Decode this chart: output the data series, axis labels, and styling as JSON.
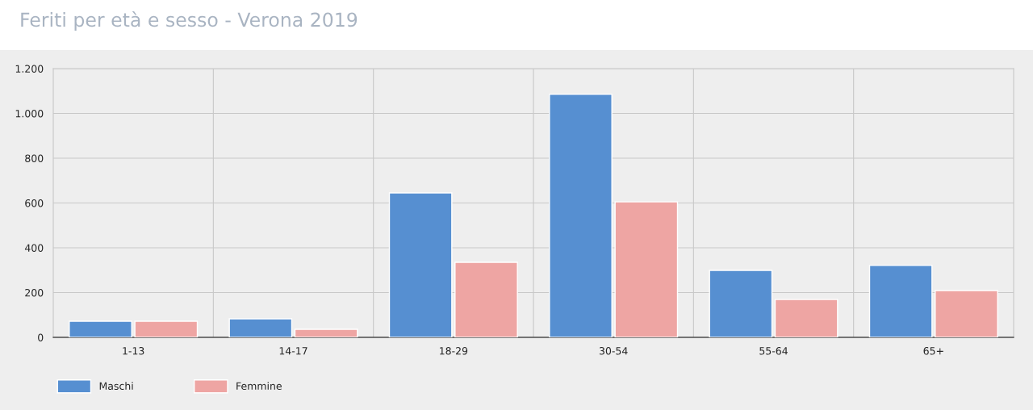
{
  "chart_data": {
    "type": "bar",
    "title": "Feriti per età e sesso - Verona 2019",
    "categories": [
      "1-13",
      "14-17",
      "18-29",
      "30-54",
      "55-64",
      "65+"
    ],
    "series": [
      {
        "name": "Maschi",
        "color": "#568fd1",
        "values": [
          72,
          83,
          645,
          1085,
          299,
          321
        ]
      },
      {
        "name": "Femmine",
        "color": "#eea5a3",
        "values": [
          72,
          36,
          335,
          605,
          169,
          209
        ]
      }
    ],
    "ylim": [
      0,
      1200
    ],
    "yticks": [
      0,
      200,
      400,
      600,
      800,
      {
        "value": 1000,
        "label": "1.000"
      },
      {
        "value": 1200,
        "label": "1.200"
      }
    ],
    "grid": true,
    "legend": "bottom left"
  }
}
